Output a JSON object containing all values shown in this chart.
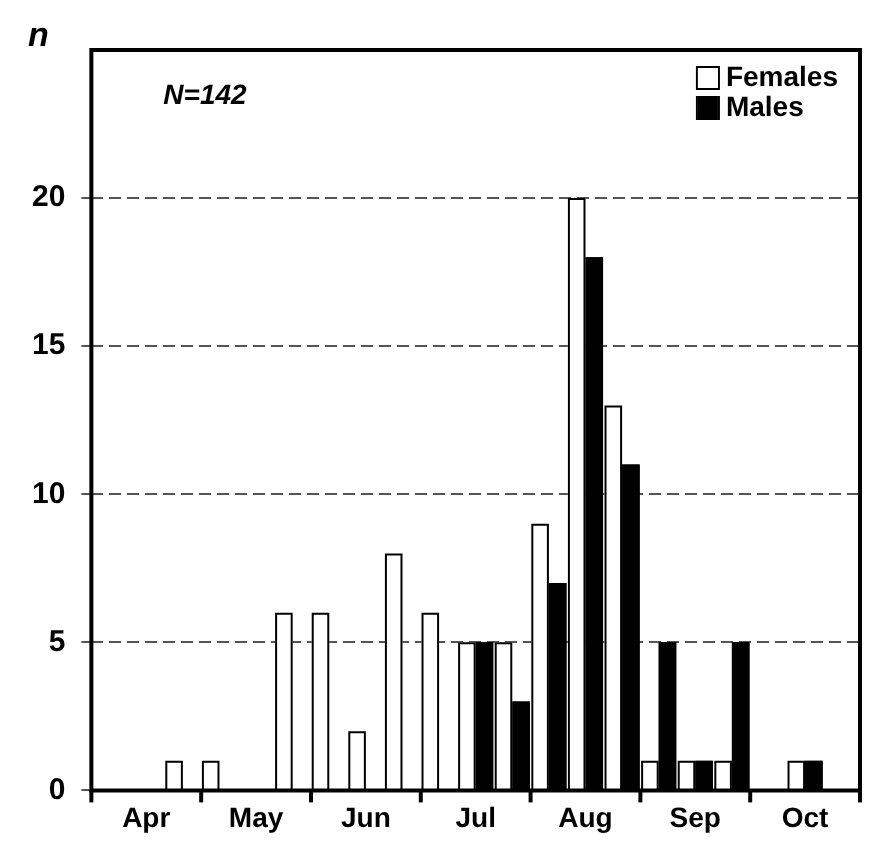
{
  "chart_data": {
    "type": "bar",
    "ylabel": "n",
    "annotations": [
      "N=142"
    ],
    "categories": [
      null,
      "Apr",
      null,
      null,
      "May",
      null,
      null,
      "Jun",
      null,
      null,
      "Jul",
      null,
      null,
      "Aug",
      null,
      null,
      "Sep",
      null,
      null,
      "Oct",
      null
    ],
    "series": [
      {
        "name": "Females",
        "color": "#ffffff",
        "values": [
          null,
          null,
          1,
          1,
          null,
          6,
          6,
          2,
          8,
          6,
          5,
          5,
          9,
          20,
          13,
          1,
          1,
          1,
          null,
          1,
          null
        ]
      },
      {
        "name": "Males",
        "color": "#000000",
        "values": [
          null,
          null,
          null,
          null,
          null,
          null,
          null,
          null,
          null,
          null,
          5,
          3,
          7,
          18,
          11,
          5,
          1,
          5,
          null,
          1,
          null
        ]
      }
    ],
    "ylim": [
      0,
      25
    ],
    "yticks": [
      0,
      5,
      10,
      15,
      20
    ],
    "grid": "y",
    "legend": "top right"
  }
}
